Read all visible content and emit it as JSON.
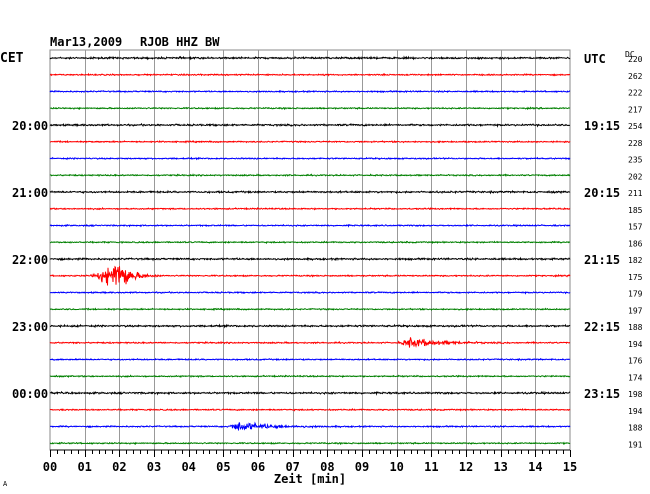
{
  "chart_data": {
    "type": "line",
    "title": "Mar13,2009",
    "station": "RJOB HHZ BW",
    "left_timezone": "CET",
    "right_timezone": "UTC",
    "dc_label": "DC",
    "xlabel": "Zeit [min]",
    "x_ticks": [
      "00",
      "01",
      "02",
      "03",
      "04",
      "05",
      "06",
      "07",
      "08",
      "09",
      "10",
      "11",
      "12",
      "13",
      "14",
      "15"
    ],
    "xlim": [
      0,
      15
    ],
    "trace_colors": [
      "#000000",
      "#ff0000",
      "#0000ff",
      "#008000"
    ],
    "left_hour_labels": [
      {
        "trace": 4,
        "text": "20:00"
      },
      {
        "trace": 8,
        "text": "21:00"
      },
      {
        "trace": 12,
        "text": "22:00"
      },
      {
        "trace": 16,
        "text": "23:00"
      },
      {
        "trace": 20,
        "text": "00:00"
      }
    ],
    "right_hour_labels": [
      {
        "trace": 0,
        "text": "UTC"
      },
      {
        "trace": 4,
        "text": "19:15"
      },
      {
        "trace": 8,
        "text": "20:15"
      },
      {
        "trace": 12,
        "text": "21:15"
      },
      {
        "trace": 16,
        "text": "22:15"
      },
      {
        "trace": 20,
        "text": "23:15"
      }
    ],
    "dc_values": [
      "220",
      "262",
      "222",
      "217",
      "254",
      "228",
      "235",
      "202",
      "211",
      "185",
      "157",
      "186",
      "182",
      "175",
      "179",
      "197",
      "188",
      "194",
      "176",
      "174",
      "198",
      "194",
      "188",
      "191"
    ],
    "events": [
      {
        "trace": 13,
        "start_min": 1.1,
        "peak_min": 2.0,
        "end_min": 3.2,
        "amplitude": "large"
      },
      {
        "trace": 17,
        "start_min": 10.0,
        "peak_min": 10.4,
        "end_min": 13.2,
        "amplitude": "medium"
      },
      {
        "trace": 22,
        "start_min": 5.1,
        "peak_min": 5.4,
        "end_min": 8.5,
        "amplitude": "medium"
      }
    ],
    "corner_mark": "A"
  }
}
